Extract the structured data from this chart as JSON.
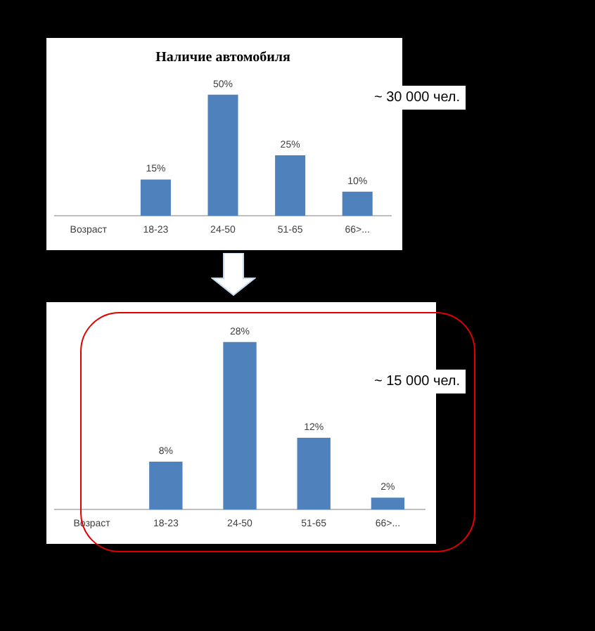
{
  "chart_data": [
    {
      "type": "bar",
      "title": "Наличие автомобиля",
      "categories": [
        "Возраст",
        "18-23",
        "24-50",
        "51-65",
        "66>..."
      ],
      "values": [
        null,
        15,
        50,
        25,
        10
      ],
      "value_labels": [
        null,
        "15%",
        "50%",
        "25%",
        "10%"
      ],
      "color": "#4f81bd",
      "grid": false,
      "legend": false,
      "annotations": [
        "~ 30 000 чел."
      ]
    },
    {
      "type": "bar",
      "categories": [
        "Возраст",
        "18-23",
        "24-50",
        "51-65",
        "66>..."
      ],
      "values": [
        null,
        8,
        28,
        12,
        2
      ],
      "value_labels": [
        null,
        "8%",
        "28%",
        "12%",
        "2%"
      ],
      "color": "#4f81bd",
      "grid": false,
      "legend": false,
      "annotations": [
        "~ 15 000 чел."
      ]
    }
  ]
}
